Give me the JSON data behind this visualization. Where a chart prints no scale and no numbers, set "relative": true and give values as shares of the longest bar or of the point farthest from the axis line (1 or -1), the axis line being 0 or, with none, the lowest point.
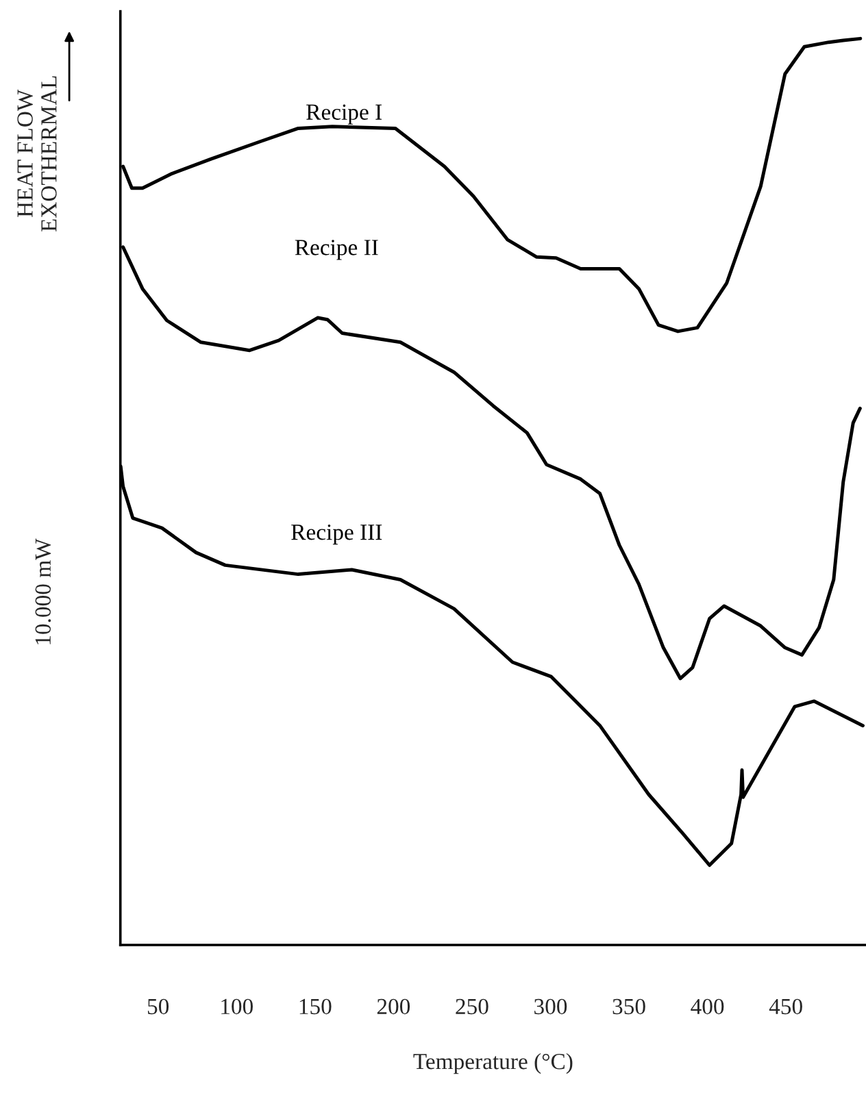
{
  "chart_data": {
    "type": "line",
    "relative": true,
    "xlabel": "Temperature (°C)",
    "ylabel": "HEAT FLOW\nEXOTHERMAL",
    "annotations": [
      "10.000 mW"
    ],
    "tick_labels": "x",
    "xlim": [
      26,
      501
    ],
    "xticks": [
      50,
      100,
      150,
      200,
      250,
      300,
      350,
      400,
      450
    ],
    "series": [
      {
        "name": "Recipe I",
        "color": "#000000",
        "x": [
          27.7,
          33.3,
          40.1,
          58.8,
          83.5,
          114.4,
          139.3,
          161.0,
          201.2,
          232.4,
          251.0,
          272.7,
          291.2,
          303.6,
          319.2,
          343.9,
          356.3,
          368.8,
          381.2,
          393.6,
          412.2,
          433.9,
          449.4,
          461.7,
          477.3,
          486.5,
          497.4
        ],
        "values": [
          0.859,
          0.835,
          0.835,
          0.851,
          0.867,
          0.886,
          0.901,
          0.903,
          0.901,
          0.859,
          0.826,
          0.778,
          0.759,
          0.758,
          0.746,
          0.746,
          0.724,
          0.684,
          0.677,
          0.681,
          0.73,
          0.837,
          0.961,
          0.991,
          0.996,
          0.998,
          1.0
        ]
      },
      {
        "name": "Recipe II",
        "color": "#000000",
        "x": [
          27.7,
          40.1,
          55.6,
          77.3,
          108.3,
          126.9,
          151.7,
          157.9,
          167.3,
          204.4,
          238.5,
          263.4,
          285.1,
          297.5,
          319.2,
          331.5,
          343.9,
          356.3,
          371.9,
          382.7,
          390.5,
          401.3,
          410.6,
          433.9,
          449.4,
          460.2,
          471.1,
          480.4,
          486.5,
          492.8,
          497.2
        ],
        "values": [
          0.77,
          0.724,
          0.689,
          0.665,
          0.656,
          0.667,
          0.692,
          0.69,
          0.675,
          0.665,
          0.632,
          0.595,
          0.565,
          0.53,
          0.514,
          0.498,
          0.441,
          0.398,
          0.328,
          0.294,
          0.306,
          0.36,
          0.374,
          0.352,
          0.328,
          0.32,
          0.35,
          0.403,
          0.511,
          0.576,
          0.592
        ]
      },
      {
        "name": "Recipe III",
        "color": "#000000",
        "x": [
          26.2,
          27.7,
          33.9,
          52.5,
          74.2,
          92.8,
          139.3,
          173.4,
          204.4,
          238.5,
          275.8,
          300.5,
          331.5,
          362.6,
          384.3,
          401.3,
          415.3,
          421.4,
          422.0,
          422.7,
          455.6,
          468.0,
          499.0
        ],
        "values": [
          0.528,
          0.506,
          0.471,
          0.46,
          0.433,
          0.419,
          0.409,
          0.414,
          0.403,
          0.371,
          0.312,
          0.296,
          0.242,
          0.166,
          0.123,
          0.088,
          0.112,
          0.166,
          0.193,
          0.163,
          0.263,
          0.269,
          0.242
        ]
      }
    ]
  }
}
